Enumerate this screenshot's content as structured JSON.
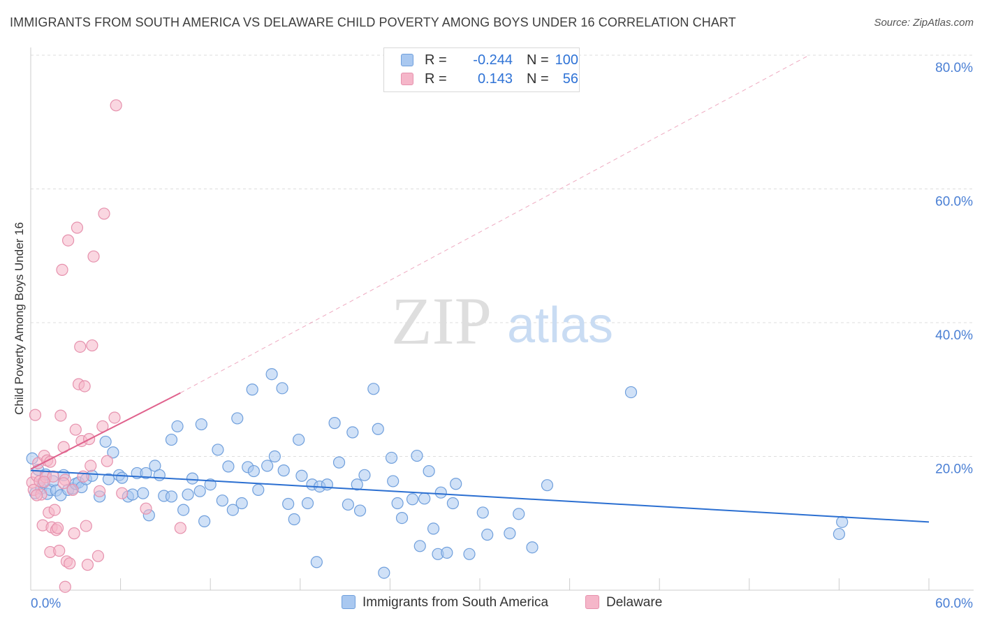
{
  "title": "IMMIGRANTS FROM SOUTH AMERICA VS DELAWARE CHILD POVERTY AMONG BOYS UNDER 16 CORRELATION CHART",
  "source": "Source: ZipAtlas.com",
  "watermark": {
    "zip": "ZIP",
    "atlas": "atlas"
  },
  "legend": {
    "series1": {
      "r_label": "R =",
      "r_value": "-0.244",
      "n_label": "N =",
      "n_value": "100"
    },
    "series2": {
      "r_label": "R =",
      "r_value": "0.143",
      "n_label": "N =",
      "n_value": "56"
    }
  },
  "bottom_legend": {
    "series1": "Immigrants from South America",
    "series2": "Delaware"
  },
  "colors": {
    "blue_fill": "#a9c8f0",
    "blue_stroke": "#6f9fdc",
    "blue_line": "#2b6fd1",
    "pink_fill": "#f5b6c9",
    "pink_stroke": "#e691ad",
    "pink_line": "#e0628d",
    "axis_text": "#4a7fd4",
    "grid": "#dddddd"
  },
  "chart_data": {
    "type": "scatter",
    "title": "IMMIGRANTS FROM SOUTH AMERICA VS DELAWARE CHILD POVERTY AMONG BOYS UNDER 16 CORRELATION CHART",
    "xlabel": "",
    "ylabel": "Child Poverty Among Boys Under 16",
    "xlim": [
      0,
      60
    ],
    "ylim": [
      0,
      80
    ],
    "x_tick_labels": [
      "0.0%",
      "60.0%"
    ],
    "y_ticks": [
      {
        "value": 20,
        "label": "20.0%"
      },
      {
        "value": 40,
        "label": "40.0%"
      },
      {
        "value": 60,
        "label": "60.0%"
      },
      {
        "value": 80,
        "label": "80.0%"
      }
    ],
    "series": [
      {
        "name": "Immigrants from South America",
        "r": -0.244,
        "n": 100,
        "trend": {
          "x": [
            0,
            60
          ],
          "y": [
            17.9,
            10.2
          ]
        },
        "points": [
          [
            0.1,
            19.7
          ],
          [
            0.3,
            14.5
          ],
          [
            0.5,
            18.0
          ],
          [
            0.7,
            15.2
          ],
          [
            0.8,
            16.1
          ],
          [
            1.0,
            17.3
          ],
          [
            1.1,
            14.4
          ],
          [
            1.3,
            15.0
          ],
          [
            1.5,
            16.3
          ],
          [
            1.7,
            14.9
          ],
          [
            2.0,
            14.2
          ],
          [
            2.2,
            17.2
          ],
          [
            2.5,
            15.0
          ],
          [
            2.8,
            15.2
          ],
          [
            3.0,
            15.9
          ],
          [
            3.2,
            16.1
          ],
          [
            3.4,
            15.4
          ],
          [
            3.7,
            16.6
          ],
          [
            4.1,
            17.1
          ],
          [
            4.6,
            14.0
          ],
          [
            5.0,
            22.2
          ],
          [
            5.2,
            16.6
          ],
          [
            5.5,
            20.6
          ],
          [
            5.9,
            17.2
          ],
          [
            6.1,
            16.8
          ],
          [
            6.5,
            14.0
          ],
          [
            6.8,
            14.3
          ],
          [
            7.1,
            17.5
          ],
          [
            7.5,
            14.5
          ],
          [
            7.7,
            17.5
          ],
          [
            7.9,
            11.2
          ],
          [
            8.3,
            18.6
          ],
          [
            8.6,
            17.2
          ],
          [
            8.9,
            14.1
          ],
          [
            9.4,
            14.0
          ],
          [
            9.4,
            22.5
          ],
          [
            9.8,
            24.5
          ],
          [
            10.2,
            12.0
          ],
          [
            10.5,
            14.3
          ],
          [
            10.8,
            16.7
          ],
          [
            11.3,
            14.8
          ],
          [
            11.4,
            24.8
          ],
          [
            11.6,
            10.3
          ],
          [
            12.0,
            15.8
          ],
          [
            12.5,
            21.0
          ],
          [
            12.8,
            13.4
          ],
          [
            13.2,
            18.5
          ],
          [
            13.5,
            12.0
          ],
          [
            13.8,
            25.7
          ],
          [
            14.1,
            13.0
          ],
          [
            14.5,
            18.4
          ],
          [
            14.8,
            30.0
          ],
          [
            14.9,
            17.8
          ],
          [
            15.2,
            15.0
          ],
          [
            15.8,
            18.6
          ],
          [
            16.1,
            32.3
          ],
          [
            16.3,
            20.0
          ],
          [
            16.8,
            30.2
          ],
          [
            16.9,
            17.9
          ],
          [
            17.2,
            12.9
          ],
          [
            17.6,
            10.6
          ],
          [
            17.9,
            22.5
          ],
          [
            18.1,
            17.1
          ],
          [
            18.5,
            13.0
          ],
          [
            18.8,
            15.8
          ],
          [
            19.1,
            4.2
          ],
          [
            19.3,
            15.5
          ],
          [
            19.8,
            15.8
          ],
          [
            20.3,
            25.0
          ],
          [
            20.6,
            19.1
          ],
          [
            21.2,
            12.8
          ],
          [
            21.5,
            23.6
          ],
          [
            21.8,
            15.8
          ],
          [
            22.0,
            11.9
          ],
          [
            22.3,
            17.2
          ],
          [
            22.9,
            30.1
          ],
          [
            23.2,
            24.1
          ],
          [
            23.6,
            2.6
          ],
          [
            24.1,
            19.8
          ],
          [
            24.2,
            16.3
          ],
          [
            24.5,
            13.0
          ],
          [
            24.8,
            10.8
          ],
          [
            25.5,
            13.6
          ],
          [
            25.8,
            20.1
          ],
          [
            26.0,
            6.6
          ],
          [
            26.3,
            13.7
          ],
          [
            26.6,
            17.8
          ],
          [
            26.9,
            9.2
          ],
          [
            27.2,
            5.4
          ],
          [
            27.4,
            14.6
          ],
          [
            27.8,
            5.6
          ],
          [
            28.2,
            13.0
          ],
          [
            28.4,
            15.9
          ],
          [
            29.3,
            5.4
          ],
          [
            30.2,
            11.6
          ],
          [
            30.5,
            8.3
          ],
          [
            32.0,
            8.5
          ],
          [
            32.6,
            11.4
          ],
          [
            33.5,
            6.4
          ],
          [
            34.5,
            15.7
          ],
          [
            40.1,
            29.6
          ],
          [
            54.0,
            8.4
          ],
          [
            54.2,
            10.2
          ]
        ]
      },
      {
        "name": "Delaware",
        "r": 0.143,
        "n": 56,
        "trend": {
          "x": [
            0,
            10
          ],
          "y": [
            18.1,
            29.5
          ]
        },
        "trend_extended": {
          "x": [
            10,
            52
          ],
          "y": [
            29.5,
            80.0
          ]
        },
        "points": [
          [
            0.1,
            16.1
          ],
          [
            0.2,
            15.0
          ],
          [
            0.3,
            26.2
          ],
          [
            0.4,
            17.1
          ],
          [
            0.5,
            19.0
          ],
          [
            0.6,
            16.3
          ],
          [
            0.7,
            14.3
          ],
          [
            0.8,
            9.7
          ],
          [
            0.9,
            20.1
          ],
          [
            1.0,
            16.9
          ],
          [
            1.1,
            19.4
          ],
          [
            1.2,
            11.6
          ],
          [
            1.3,
            5.7
          ],
          [
            1.4,
            9.4
          ],
          [
            1.5,
            17.0
          ],
          [
            1.6,
            12.0
          ],
          [
            1.7,
            9.0
          ],
          [
            1.8,
            9.3
          ],
          [
            1.9,
            5.9
          ],
          [
            2.0,
            26.1
          ],
          [
            2.1,
            47.9
          ],
          [
            2.2,
            21.4
          ],
          [
            2.3,
            16.5
          ],
          [
            2.4,
            4.3
          ],
          [
            2.5,
            52.3
          ],
          [
            2.6,
            4.0
          ],
          [
            2.8,
            15.0
          ],
          [
            2.9,
            8.5
          ],
          [
            3.0,
            24.0
          ],
          [
            3.1,
            54.2
          ],
          [
            3.2,
            30.8
          ],
          [
            3.3,
            36.4
          ],
          [
            3.4,
            22.3
          ],
          [
            3.5,
            17.0
          ],
          [
            3.6,
            30.5
          ],
          [
            3.7,
            9.6
          ],
          [
            3.8,
            3.8
          ],
          [
            3.9,
            22.6
          ],
          [
            4.0,
            18.6
          ],
          [
            4.1,
            36.6
          ],
          [
            4.2,
            49.9
          ],
          [
            4.5,
            5.1
          ],
          [
            4.6,
            14.8
          ],
          [
            4.8,
            24.5
          ],
          [
            4.9,
            56.3
          ],
          [
            5.1,
            19.3
          ],
          [
            5.6,
            25.8
          ],
          [
            5.7,
            72.5
          ],
          [
            6.1,
            14.5
          ],
          [
            7.7,
            12.2
          ],
          [
            10.0,
            9.3
          ],
          [
            2.3,
            0.5
          ],
          [
            0.9,
            16.2
          ],
          [
            1.3,
            19.2
          ],
          [
            0.4,
            14.2
          ],
          [
            2.2,
            16.0
          ]
        ]
      }
    ]
  }
}
